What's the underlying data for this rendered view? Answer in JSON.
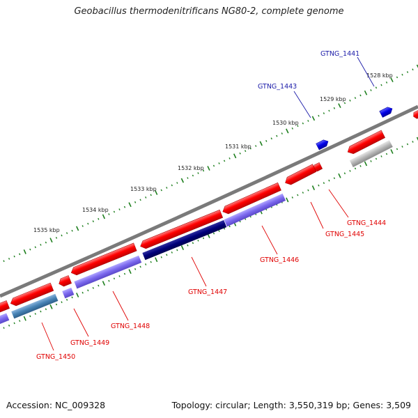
{
  "title": "Geobacillus thermodenitrificans NG80-2, complete genome",
  "footer": {
    "accession": "Accession: NC_009328",
    "topology": "Topology: circular; Length: 3,550,319 bp; Genes: 3,509"
  },
  "colors": {
    "backbone": "#7a7a7a",
    "ticks": "#1e7f1e",
    "forward_gene": "#ff0000",
    "reverse_gene": "#0000e6",
    "forward_label": "#1a1aa8",
    "reverse_label": "#e00000",
    "protein_light": "#7b68ee",
    "protein_dark": "#00007a",
    "protein_steel": "#4682b4",
    "protein_gray": "#b5b5b5"
  },
  "scale_labels": [
    "1528 kbp",
    "1529 kbp",
    "1530 kbp",
    "1531 kbp",
    "1532 kbp",
    "1533 kbp",
    "1534 kbp",
    "1535 kbp"
  ],
  "forward_gene_labels": [
    "GTNG_1441",
    "GTNG_1443"
  ],
  "reverse_gene_labels": [
    "GTNG_1444",
    "GTNG_1445",
    "GTNG_1446",
    "GTNG_1447",
    "GTNG_1448",
    "GTNG_1449",
    "GTNG_1450"
  ]
}
